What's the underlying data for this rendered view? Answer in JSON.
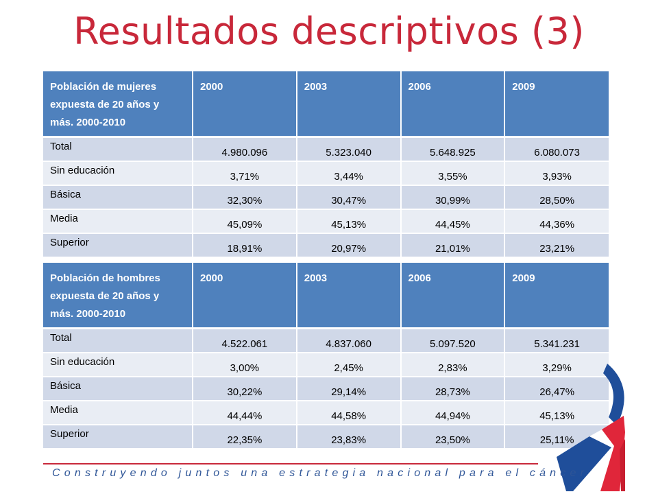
{
  "title": "Resultados descriptivos (3)",
  "tables": [
    {
      "header": [
        "Población de mujeres expuesta de 20 años y más. 2000-2010",
        "2000",
        "2003",
        "2006",
        "2009"
      ],
      "rows": [
        {
          "label": "Total",
          "values": [
            "4.980.096",
            "5.323.040",
            "5.648.925",
            "6.080.073"
          ]
        },
        {
          "label": "Sin educación",
          "values": [
            "3,71%",
            "3,44%",
            "3,55%",
            "3,93%"
          ]
        },
        {
          "label": "Básica",
          "values": [
            "32,30%",
            "30,47%",
            "30,99%",
            "28,50%"
          ]
        },
        {
          "label": "Media",
          "values": [
            "45,09%",
            "45,13%",
            "44,45%",
            "44,36%"
          ]
        },
        {
          "label": "Superior",
          "values": [
            "18,91%",
            "20,97%",
            "21,01%",
            "23,21%"
          ]
        }
      ]
    },
    {
      "header": [
        "Población de hombres expuesta de 20 años y más. 2000-2010",
        "2000",
        "2003",
        "2006",
        "2009"
      ],
      "rows": [
        {
          "label": "Total",
          "values": [
            "4.522.061",
            "4.837.060",
            "5.097.520",
            "5.341.231"
          ]
        },
        {
          "label": "Sin educación",
          "values": [
            "3,00%",
            "2,45%",
            "2,83%",
            "3,29%"
          ]
        },
        {
          "label": "Básica",
          "values": [
            "30,22%",
            "29,14%",
            "28,73%",
            "26,47%"
          ]
        },
        {
          "label": "Media",
          "values": [
            "44,44%",
            "44,58%",
            "44,94%",
            "45,13%"
          ]
        },
        {
          "label": "Superior",
          "values": [
            "22,35%",
            "23,83%",
            "23,50%",
            "25,11%"
          ]
        }
      ]
    }
  ],
  "footer": "Construyendo juntos una estrategia nacional para el cáncer",
  "colors": {
    "title": "#c8283a",
    "header": "#4f81bd",
    "row_odd": "#d0d8e8",
    "row_even": "#e9edf4",
    "footer_text": "#2e5597",
    "ribbon_blue": "#1f4e9a",
    "ribbon_red": "#e0263a"
  },
  "decoration": {
    "ribbon": "chile-flag-ribbon-icon"
  }
}
